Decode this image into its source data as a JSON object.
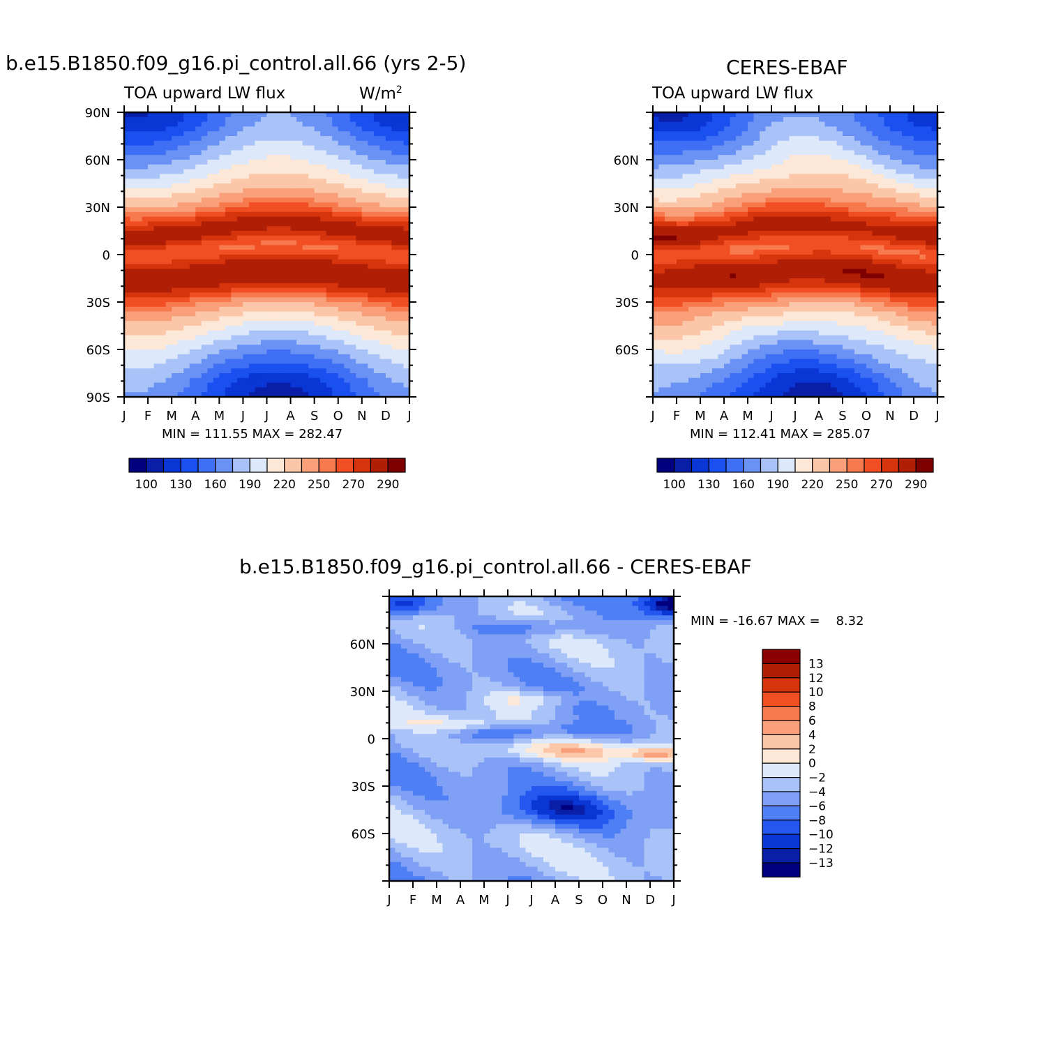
{
  "chart_data": [
    {
      "type": "heatmap",
      "title": "b.e15.B1850.f09_g16.pi_control.all.66 (yrs 2-5)",
      "subtitle_left": "TOA upward LW flux",
      "units_label": "W/m",
      "units_sup": "2",
      "x_ticks": [
        "J",
        "F",
        "M",
        "A",
        "M",
        "J",
        "J",
        "A",
        "S",
        "O",
        "N",
        "D",
        "J"
      ],
      "y_ticks": [
        "90N",
        "60N",
        "30N",
        "0",
        "30S",
        "60S",
        "90S"
      ],
      "y_values": [
        90,
        60,
        30,
        0,
        -30,
        -60,
        -90
      ],
      "ylim": [
        -90,
        90
      ],
      "stats_text": "MIN = 111.55 MAX = 282.47",
      "min": 111.55,
      "max": 282.47,
      "colorbar_labels": [
        "100",
        "130",
        "160",
        "190",
        "220",
        "250",
        "270",
        "290"
      ],
      "colorbar_colors": [
        "#00007f",
        "#0a1fa8",
        "#0a36d6",
        "#1a4ff0",
        "#3f6ff5",
        "#6a92f5",
        "#a9c2f7",
        "#dde9fa",
        "#fde7d6",
        "#fcc6a8",
        "#f9a07a",
        "#f77a4f",
        "#f24e23",
        "#d6340c",
        "#b01e06",
        "#7f0000"
      ],
      "levels": [
        100,
        115,
        130,
        145,
        160,
        175,
        190,
        205,
        220,
        235,
        250,
        260,
        270,
        280,
        290
      ]
    },
    {
      "type": "heatmap",
      "title": "CERES-EBAF",
      "subtitle_left": "TOA upward LW flux",
      "x_ticks": [
        "J",
        "F",
        "M",
        "A",
        "M",
        "J",
        "J",
        "A",
        "S",
        "O",
        "N",
        "D",
        "J"
      ],
      "y_ticks": [
        "60N",
        "30N",
        "0",
        "30S",
        "60S"
      ],
      "y_values": [
        60,
        30,
        0,
        -30,
        -60
      ],
      "ylim": [
        -90,
        90
      ],
      "stats_text": "MIN = 112.41 MAX = 285.07",
      "min": 112.41,
      "max": 285.07,
      "colorbar_labels": [
        "100",
        "130",
        "160",
        "190",
        "220",
        "250",
        "270",
        "290"
      ]
    },
    {
      "type": "heatmap",
      "title": "b.e15.B1850.f09_g16.pi_control.all.66 - CERES-EBAF",
      "x_ticks": [
        "J",
        "F",
        "M",
        "A",
        "M",
        "J",
        "J",
        "A",
        "S",
        "O",
        "N",
        "D",
        "J"
      ],
      "y_ticks": [
        "60N",
        "30N",
        "0",
        "30S",
        "60S"
      ],
      "y_values": [
        60,
        30,
        0,
        -30,
        -60
      ],
      "ylim": [
        -90,
        90
      ],
      "stats_text": "MIN = -16.67 MAX =    8.32",
      "min": -16.67,
      "max": 8.32,
      "colorbar_labels": [
        "13",
        "12",
        "10",
        "8",
        "6",
        "4",
        "2",
        "0",
        "-2",
        "-4",
        "-6",
        "-8",
        "-10",
        "-12",
        "-13"
      ],
      "colorbar_colors": [
        "#8b0000",
        "#b01e06",
        "#d6340c",
        "#f24e23",
        "#f77a4f",
        "#f9a07a",
        "#fcc6a8",
        "#fde7d6",
        "#dde9fa",
        "#a9c2f7",
        "#7fa0f5",
        "#4f7ff5",
        "#2456f0",
        "#0a36d6",
        "#0a1fa8",
        "#00007f"
      ]
    }
  ]
}
